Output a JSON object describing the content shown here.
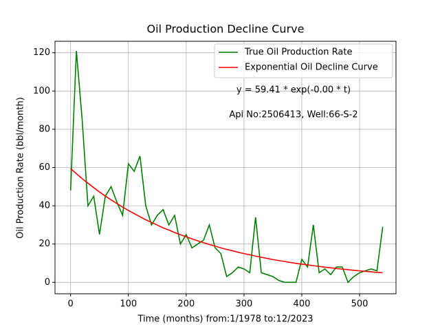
{
  "chart_data": {
    "type": "line",
    "title": "Oil Production Decline Curve",
    "x_label": "Time (months) from:1/1978 to:12/2023",
    "y_label": "Oil Production Rate (bbl/month)",
    "annotations": [
      "y = 59.41 * exp(-0.00 * t)",
      "Api No:2506413, Well:66-S-2"
    ],
    "x": [
      0,
      10,
      20,
      30,
      40,
      50,
      60,
      70,
      80,
      90,
      100,
      110,
      120,
      130,
      140,
      150,
      160,
      170,
      180,
      190,
      200,
      210,
      220,
      230,
      240,
      250,
      260,
      270,
      280,
      290,
      300,
      310,
      320,
      330,
      340,
      350,
      360,
      370,
      380,
      390,
      400,
      410,
      420,
      430,
      440,
      450,
      460,
      470,
      480,
      490,
      500,
      510,
      520,
      530,
      540
    ],
    "series": [
      {
        "name": "True Oil Production Rate",
        "color": "#008000",
        "values": [
          48,
          121,
          85,
          40,
          45,
          25,
          45,
          50,
          42,
          35,
          62,
          58,
          66,
          40,
          30,
          35,
          38,
          30,
          35,
          20,
          25,
          18,
          20,
          22,
          30,
          18,
          15,
          3,
          5,
          8,
          7,
          5,
          34,
          5,
          4,
          3,
          1,
          0,
          0,
          0,
          12,
          8,
          30,
          5,
          7,
          4,
          8,
          8,
          0,
          3,
          5,
          6,
          7,
          6,
          29
        ]
      },
      {
        "name": "Exponential Oil Decline Curve",
        "color": "#ff0000",
        "values": [
          59.4,
          56.8,
          54.2,
          51.8,
          49.5,
          47.2,
          45.1,
          43.1,
          41.2,
          39.3,
          37.6,
          35.9,
          34.3,
          32.7,
          31.3,
          29.9,
          28.5,
          27.3,
          26.0,
          24.9,
          23.8,
          22.7,
          21.7,
          20.7,
          19.8,
          18.9,
          18.0,
          17.2,
          16.5,
          15.7,
          15.0,
          14.4,
          13.7,
          13.1,
          12.5,
          11.9,
          11.4,
          10.9,
          10.4,
          9.9,
          9.5,
          9.1,
          8.7,
          8.3,
          7.9,
          7.6,
          7.2,
          6.9,
          6.6,
          6.3,
          6.0,
          5.7,
          5.5,
          5.2,
          5.0
        ]
      }
    ],
    "xlim": [
      -27,
      563
    ],
    "ylim": [
      -6,
      126
    ],
    "xticks": [
      0,
      100,
      200,
      300,
      400,
      500
    ],
    "yticks": [
      0,
      20,
      40,
      60,
      80,
      100,
      120
    ],
    "grid": true,
    "legend": "upper right"
  }
}
